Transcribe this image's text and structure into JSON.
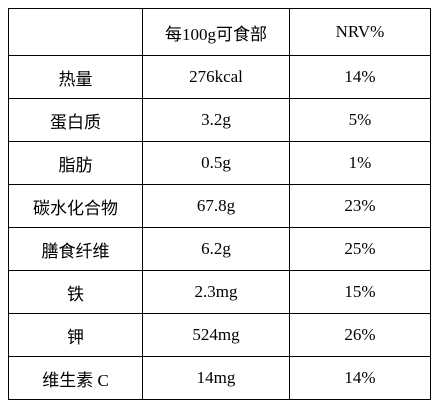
{
  "table": {
    "header": [
      "每100g可食部",
      "NRV%"
    ],
    "rows": [
      [
        "热量",
        "276kcal",
        "14%"
      ],
      [
        "蛋白质",
        "3.2g",
        "5%"
      ],
      [
        "脂肪",
        "0.5g",
        "1%"
      ],
      [
        "碳水化合物",
        "67.8g",
        "23%"
      ],
      [
        "膳食纤维",
        "6.2g",
        "25%"
      ],
      [
        "铁",
        "2.3mg",
        "15%"
      ],
      [
        "钾",
        "524mg",
        "26%"
      ],
      [
        "维生素 C",
        "14mg",
        "14%"
      ]
    ]
  }
}
